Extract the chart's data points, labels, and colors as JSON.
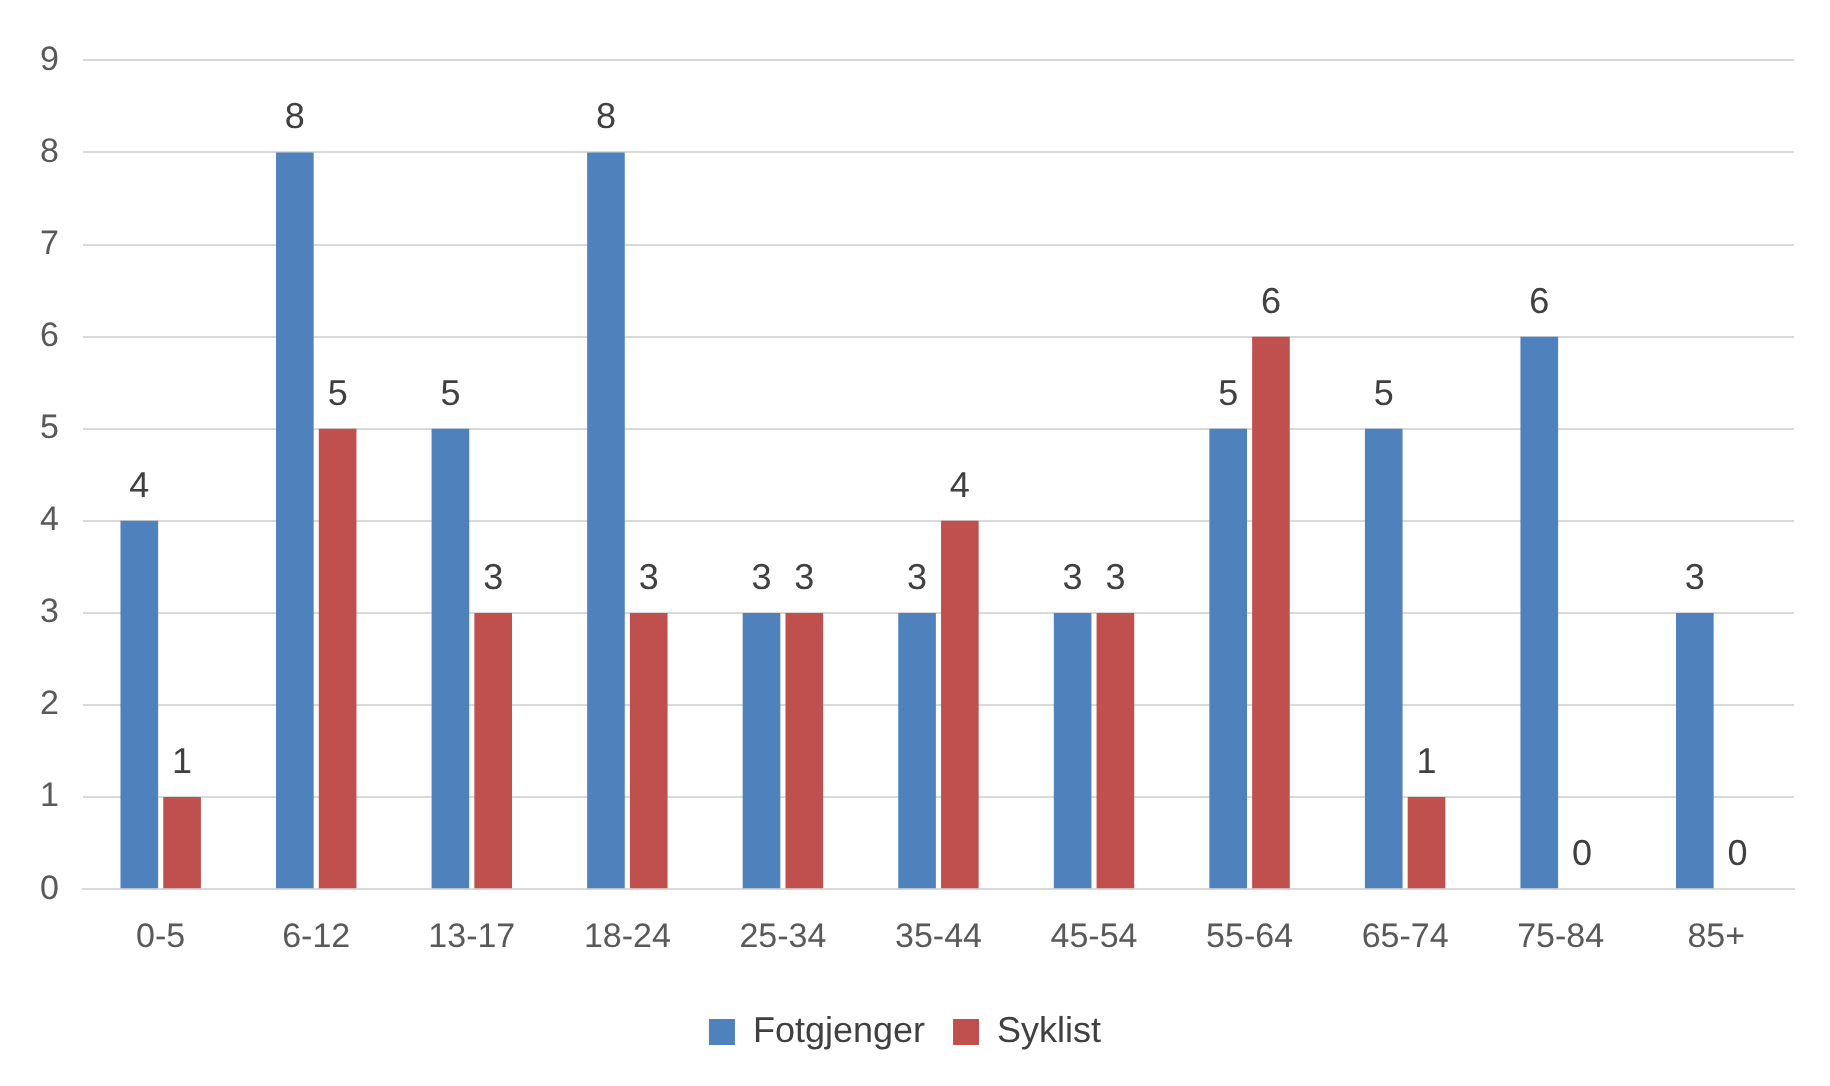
{
  "chart_data": {
    "type": "bar",
    "categories": [
      "0-5",
      "6-12",
      "13-17",
      "18-24",
      "25-34",
      "35-44",
      "45-54",
      "55-64",
      "65-74",
      "75-84",
      "85+"
    ],
    "series": [
      {
        "name": "Fotgjenger",
        "color": "#4f81bd",
        "values": [
          4,
          8,
          5,
          8,
          3,
          3,
          3,
          5,
          5,
          6,
          3
        ]
      },
      {
        "name": "Syklist",
        "color": "#c0504d",
        "values": [
          1,
          5,
          3,
          3,
          3,
          4,
          3,
          6,
          1,
          0,
          0
        ]
      }
    ],
    "ylim": [
      0,
      9
    ],
    "yticks": [
      0,
      1,
      2,
      3,
      4,
      5,
      6,
      7,
      8,
      9
    ],
    "grid": "y",
    "legend": "bottom",
    "data_labels": true
  }
}
